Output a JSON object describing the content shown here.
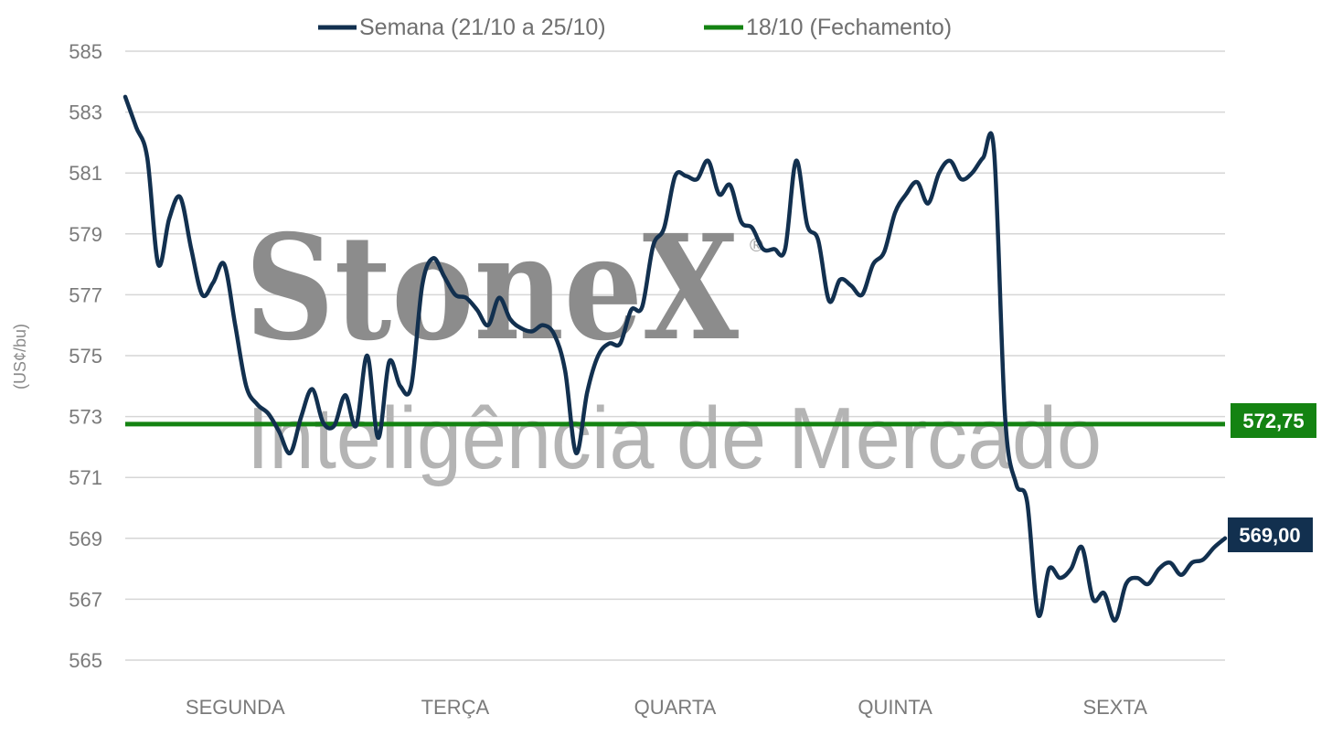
{
  "chart_data": {
    "type": "line",
    "title": "",
    "xlabel": "",
    "ylabel": "(US¢/bu)",
    "ylim": [
      565,
      585
    ],
    "yticks": [
      565,
      567,
      569,
      571,
      573,
      575,
      577,
      579,
      581,
      583,
      585
    ],
    "categories": [
      "SEGUNDA",
      "TERÇA",
      "QUARTA",
      "QUINTA",
      "SEXTA"
    ],
    "grid": true,
    "legend_position": "top-center",
    "series": [
      {
        "name": "Semana (21/10 a 25/10)",
        "color": "#12304f",
        "x": [
          0,
          0.05,
          0.1,
          0.15,
          0.2,
          0.25,
          0.3,
          0.35,
          0.4,
          0.45,
          0.5,
          0.55,
          0.6,
          0.65,
          0.7,
          0.75,
          0.8,
          0.85,
          0.9,
          0.95,
          1.0,
          1.05,
          1.1,
          1.15,
          1.2,
          1.25,
          1.3,
          1.35,
          1.4,
          1.45,
          1.5,
          1.55,
          1.6,
          1.65,
          1.7,
          1.75,
          1.8,
          1.85,
          1.9,
          1.95,
          2.0,
          2.05,
          2.1,
          2.15,
          2.2,
          2.25,
          2.3,
          2.35,
          2.4,
          2.45,
          2.5,
          2.55,
          2.6,
          2.65,
          2.7,
          2.75,
          2.8,
          2.85,
          2.9,
          2.95,
          3.0,
          3.05,
          3.1,
          3.15,
          3.2,
          3.25,
          3.3,
          3.35,
          3.4,
          3.45,
          3.5,
          3.55,
          3.6,
          3.65,
          3.7,
          3.75,
          3.8,
          3.85,
          3.9,
          3.95,
          4.0,
          4.05,
          4.1,
          4.15,
          4.2,
          4.25,
          4.3,
          4.35,
          4.4,
          4.45,
          4.5,
          4.55,
          4.6,
          4.65,
          4.7,
          4.75,
          4.8,
          4.85,
          4.9,
          4.95,
          5.0
        ],
        "values": [
          583.5,
          582.5,
          581.5,
          578.0,
          579.5,
          580.2,
          578.5,
          577.0,
          577.4,
          578.0,
          576.0,
          574.0,
          573.4,
          573.1,
          572.5,
          571.8,
          573.0,
          573.9,
          572.8,
          572.7,
          573.7,
          572.7,
          575.0,
          572.3,
          574.8,
          574.0,
          574.0,
          577.3,
          578.2,
          577.6,
          577.0,
          576.9,
          576.5,
          576.0,
          576.9,
          576.2,
          575.9,
          575.8,
          576.0,
          575.7,
          574.5,
          571.8,
          573.8,
          575.0,
          575.4,
          575.4,
          576.5,
          576.6,
          578.6,
          579.2,
          580.9,
          580.9,
          580.8,
          581.4,
          580.3,
          580.6,
          579.4,
          579.2,
          578.5,
          578.5,
          578.5,
          581.4,
          579.3,
          578.8,
          576.8,
          577.5,
          577.3,
          577.0,
          578.0,
          578.4,
          579.7,
          580.3,
          580.7,
          580.0,
          581.0,
          581.4,
          580.8,
          581.0,
          581.5,
          581.7,
          573.0,
          570.8,
          570.2,
          566.5,
          568.0,
          567.7,
          568.0,
          568.7,
          567.0,
          567.2,
          566.3,
          567.5,
          567.7,
          567.5,
          568.0,
          568.2,
          567.8,
          568.2,
          568.3,
          568.7,
          569.0
        ],
        "end_label": "569,00"
      },
      {
        "name": "18/10 (Fechamento)",
        "color": "#148312",
        "constant": 572.75,
        "end_label": "572,75"
      }
    ]
  },
  "watermark": {
    "brand": "StoneX",
    "registered": "®",
    "tagline": "Inteligência de Mercado"
  }
}
